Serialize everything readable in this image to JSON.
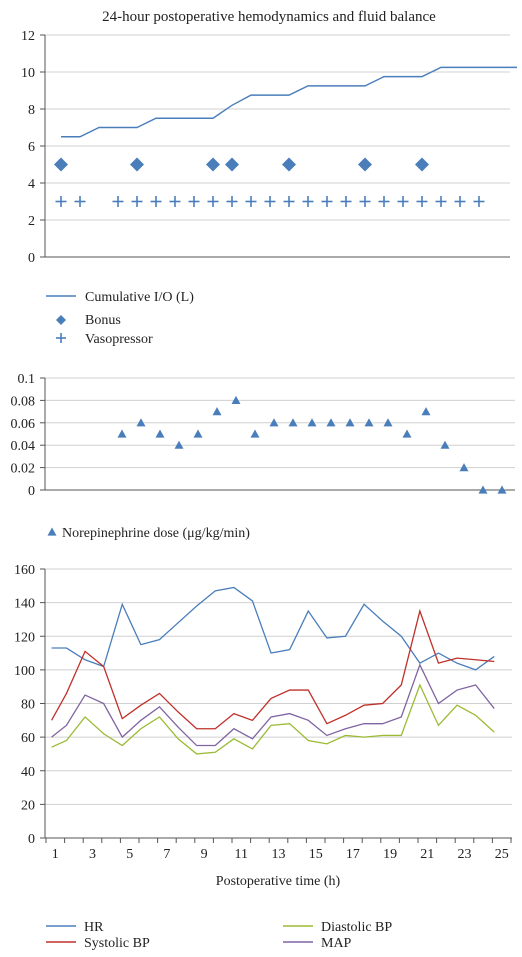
{
  "chart_data": [
    {
      "type": "line",
      "title": "24-hour postoperative hemodynamics and fluid balance",
      "ylim": [
        0,
        12
      ],
      "yticks": [
        0,
        2,
        4,
        6,
        8,
        10,
        12
      ],
      "grid": true,
      "legend": "bottom-left",
      "series": [
        {
          "name": "Cumulative I/O (L)",
          "kind": "line",
          "color": "#4a7ebb",
          "points": [
            [
              1,
              6.5
            ],
            [
              2,
              6.5
            ],
            [
              3,
              7
            ],
            [
              4,
              7
            ],
            [
              5,
              7
            ],
            [
              6,
              7.5
            ],
            [
              7,
              7.5
            ],
            [
              8,
              7.5
            ],
            [
              9,
              7.5
            ],
            [
              10,
              8.2
            ],
            [
              11,
              8.75
            ],
            [
              12,
              8.75
            ],
            [
              13,
              8.75
            ],
            [
              14,
              9.25
            ],
            [
              15,
              9.25
            ],
            [
              16,
              9.25
            ],
            [
              17,
              9.25
            ],
            [
              18,
              9.75
            ],
            [
              19,
              9.75
            ],
            [
              20,
              9.75
            ],
            [
              21,
              10.25
            ],
            [
              22,
              10.25
            ],
            [
              23,
              10.25
            ],
            [
              24,
              10.25
            ],
            [
              25,
              10.25
            ]
          ]
        },
        {
          "name": "Bonus",
          "kind": "marker-diamond",
          "color": "#4a7ebb",
          "points": [
            [
              1,
              5
            ],
            [
              5,
              5
            ],
            [
              9,
              5
            ],
            [
              10,
              5
            ],
            [
              13,
              5
            ],
            [
              17,
              5
            ],
            [
              20,
              5
            ]
          ]
        },
        {
          "name": "Vasopressor",
          "kind": "marker-plus",
          "color": "#4a7ebb",
          "points": [
            [
              1,
              3
            ],
            [
              2,
              3
            ],
            [
              4,
              3
            ],
            [
              5,
              3
            ],
            [
              6,
              3
            ],
            [
              7,
              3
            ],
            [
              8,
              3
            ],
            [
              9,
              3
            ],
            [
              10,
              3
            ],
            [
              11,
              3
            ],
            [
              12,
              3
            ],
            [
              13,
              3
            ],
            [
              14,
              3
            ],
            [
              15,
              3
            ],
            [
              16,
              3
            ],
            [
              17,
              3
            ],
            [
              18,
              3
            ],
            [
              19,
              3
            ],
            [
              20,
              3
            ],
            [
              21,
              3
            ],
            [
              22,
              3
            ],
            [
              23,
              3
            ]
          ]
        }
      ]
    },
    {
      "type": "scatter",
      "title": "",
      "ylim": [
        0,
        0.1
      ],
      "yticks": [
        "0",
        "0.02",
        "0.04",
        "0.06",
        "0.08",
        "0.1"
      ],
      "grid": true,
      "legend": "bottom-left",
      "series": [
        {
          "name": "Norepinephrine dose (μg/kg/min)",
          "kind": "marker-triangle",
          "color": "#4a7ebb",
          "points": [
            [
              5,
              0.05
            ],
            [
              6,
              0.06
            ],
            [
              7,
              0.05
            ],
            [
              8,
              0.04
            ],
            [
              9,
              0.05
            ],
            [
              10,
              0.07
            ],
            [
              11,
              0.08
            ],
            [
              12,
              0.05
            ],
            [
              13,
              0.06
            ],
            [
              14,
              0.06
            ],
            [
              15,
              0.06
            ],
            [
              16,
              0.06
            ],
            [
              17,
              0.06
            ],
            [
              18,
              0.06
            ],
            [
              19,
              0.06
            ],
            [
              20,
              0.05
            ],
            [
              21,
              0.07
            ],
            [
              22,
              0.04
            ],
            [
              23,
              0.02
            ],
            [
              24,
              0
            ],
            [
              25,
              0
            ]
          ]
        }
      ]
    },
    {
      "type": "line",
      "title": "",
      "xlabel": "Postoperative time (h)",
      "ylim": [
        0,
        160
      ],
      "yticks": [
        0,
        20,
        40,
        60,
        80,
        100,
        120,
        140,
        160
      ],
      "xticks": [
        1,
        3,
        5,
        7,
        9,
        11,
        13,
        15,
        17,
        19,
        21,
        23,
        25
      ],
      "grid": true,
      "legend": "bottom",
      "series": [
        {
          "name": "HR",
          "color": "#4a7ebb",
          "points": [
            [
              0.8,
              113
            ],
            [
              1.6,
              113
            ],
            [
              2.6,
              106
            ],
            [
              3.6,
              102
            ],
            [
              4.6,
              139
            ],
            [
              5.6,
              115
            ],
            [
              6.6,
              118
            ],
            [
              7.6,
              128
            ],
            [
              8.6,
              138
            ],
            [
              9.6,
              147
            ],
            [
              10.6,
              149
            ],
            [
              11.6,
              141
            ],
            [
              12.6,
              110
            ],
            [
              13.6,
              112
            ],
            [
              14.6,
              135
            ],
            [
              15.6,
              119
            ],
            [
              16.6,
              120
            ],
            [
              17.6,
              139
            ],
            [
              18.6,
              129
            ],
            [
              19.6,
              120
            ],
            [
              20.6,
              104
            ],
            [
              21.6,
              110
            ],
            [
              22.6,
              104
            ],
            [
              23.6,
              100
            ],
            [
              24.6,
              108
            ]
          ]
        },
        {
          "name": "Systolic BP",
          "color": "#c0302a",
          "points": [
            [
              0.8,
              70
            ],
            [
              1.6,
              86
            ],
            [
              2.6,
              111
            ],
            [
              3.6,
              102
            ],
            [
              4.6,
              71
            ],
            [
              5.6,
              79
            ],
            [
              6.6,
              86
            ],
            [
              7.6,
              75
            ],
            [
              8.6,
              65
            ],
            [
              9.6,
              65
            ],
            [
              10.6,
              74
            ],
            [
              11.6,
              70
            ],
            [
              12.6,
              83
            ],
            [
              13.6,
              88
            ],
            [
              14.6,
              88
            ],
            [
              15.6,
              68
            ],
            [
              16.6,
              73
            ],
            [
              17.6,
              79
            ],
            [
              18.6,
              80
            ],
            [
              19.6,
              91
            ],
            [
              20.6,
              135
            ],
            [
              21.6,
              104
            ],
            [
              22.6,
              107
            ],
            [
              23.6,
              106
            ],
            [
              24.6,
              105
            ]
          ]
        },
        {
          "name": "Diastolic BP",
          "color": "#9bbb34",
          "points": [
            [
              0.8,
              54
            ],
            [
              1.6,
              58
            ],
            [
              2.6,
              72
            ],
            [
              3.6,
              62
            ],
            [
              4.6,
              55
            ],
            [
              5.6,
              65
            ],
            [
              6.6,
              72
            ],
            [
              7.6,
              59
            ],
            [
              8.6,
              50
            ],
            [
              9.6,
              51
            ],
            [
              10.6,
              59
            ],
            [
              11.6,
              53
            ],
            [
              12.6,
              67
            ],
            [
              13.6,
              68
            ],
            [
              14.6,
              58
            ],
            [
              15.6,
              56
            ],
            [
              16.6,
              61
            ],
            [
              17.6,
              60
            ],
            [
              18.6,
              61
            ],
            [
              19.6,
              61
            ],
            [
              20.6,
              91
            ],
            [
              21.6,
              67
            ],
            [
              22.6,
              79
            ],
            [
              23.6,
              73
            ],
            [
              24.6,
              63
            ]
          ]
        },
        {
          "name": "MAP",
          "color": "#8064a2",
          "points": [
            [
              0.8,
              60
            ],
            [
              1.6,
              67
            ],
            [
              2.6,
              85
            ],
            [
              3.6,
              80
            ],
            [
              4.6,
              60
            ],
            [
              5.6,
              70
            ],
            [
              6.6,
              78
            ],
            [
              7.6,
              66
            ],
            [
              8.6,
              55
            ],
            [
              9.6,
              55
            ],
            [
              10.6,
              65
            ],
            [
              11.6,
              59
            ],
            [
              12.6,
              72
            ],
            [
              13.6,
              74
            ],
            [
              14.6,
              70
            ],
            [
              15.6,
              61
            ],
            [
              16.6,
              65
            ],
            [
              17.6,
              68
            ],
            [
              18.6,
              68
            ],
            [
              19.6,
              72
            ],
            [
              20.6,
              103
            ],
            [
              21.6,
              80
            ],
            [
              22.6,
              88
            ],
            [
              23.6,
              91
            ],
            [
              24.6,
              77
            ]
          ]
        }
      ]
    }
  ]
}
